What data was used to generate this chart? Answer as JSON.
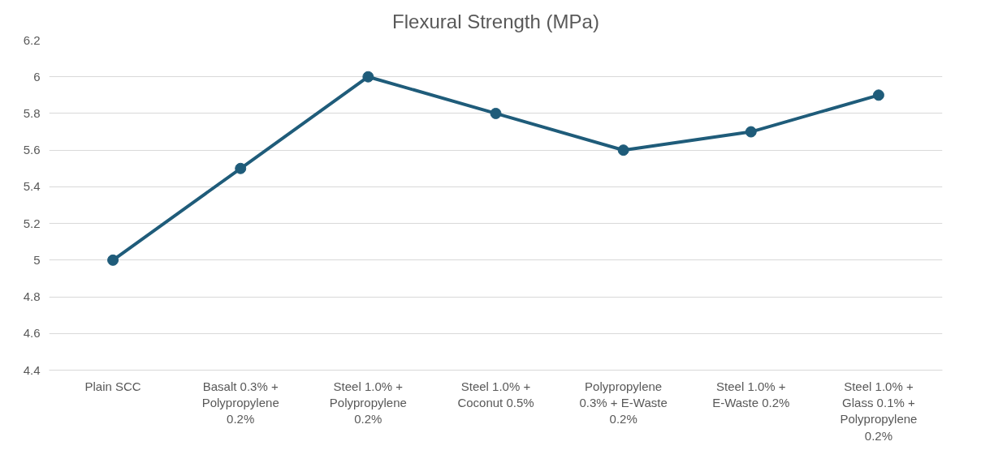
{
  "chart_data": {
    "type": "line",
    "title": "Flexural Strength (MPa)",
    "categories": [
      "Plain SCC",
      "Basalt 0.3% + Polypropylene 0.2%",
      "Steel 1.0% + Polypropylene 0.2%",
      "Steel 1.0% + Coconut 0.5%",
      "Polypropylene 0.3% + E-Waste 0.2%",
      "Steel 1.0% + E-Waste 0.2%",
      "Steel 1.0% + Glass 0.1% + Polypropylene 0.2%"
    ],
    "series": [
      {
        "color": "#1f5c7a",
        "values": [
          5,
          5.5,
          6,
          5.8,
          5.6,
          5.7,
          5.9
        ]
      }
    ],
    "ylim": [
      4.4,
      6.2
    ],
    "yticks": [
      4.4,
      4.6,
      4.8,
      5,
      5.2,
      5.4,
      5.6,
      5.8,
      6,
      6.2
    ],
    "grid": "y",
    "marker": "circle"
  }
}
